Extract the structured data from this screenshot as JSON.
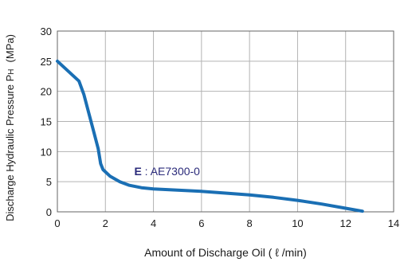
{
  "chart_data": {
    "type": "line",
    "xlabel": "Amount of Discharge Oil ( ℓ /min)",
    "ylabel_main": "Discharge Hydraulic Pressure P",
    "ylabel_sub": "H",
    "ylabel_unit": "(MPa)",
    "xlim": [
      0,
      14
    ],
    "ylim": [
      0,
      30
    ],
    "x_ticks": [
      0,
      2,
      4,
      6,
      8,
      10,
      12,
      14
    ],
    "y_ticks": [
      0,
      5,
      10,
      15,
      20,
      25,
      30
    ],
    "grid": true,
    "line_color": "#1a6fb4",
    "annotation_color": "#2a2a7a",
    "annotation": {
      "bold": "E",
      "text": " : AE7300-0"
    },
    "series": [
      {
        "x": [
          0,
          0.9,
          1.1,
          1.3,
          1.5,
          1.7,
          1.8,
          1.9,
          2.2,
          2.6,
          3.0,
          3.5,
          4.0,
          5.0,
          6.0,
          7.0,
          8.0,
          9.0,
          10.0,
          11.0,
          12.0,
          12.7
        ],
        "values": [
          25,
          21.7,
          19.5,
          16.5,
          13.5,
          10.5,
          8.0,
          7.0,
          5.9,
          5.0,
          4.4,
          4.0,
          3.8,
          3.6,
          3.4,
          3.1,
          2.8,
          2.4,
          1.9,
          1.3,
          0.6,
          0.1
        ]
      }
    ]
  }
}
